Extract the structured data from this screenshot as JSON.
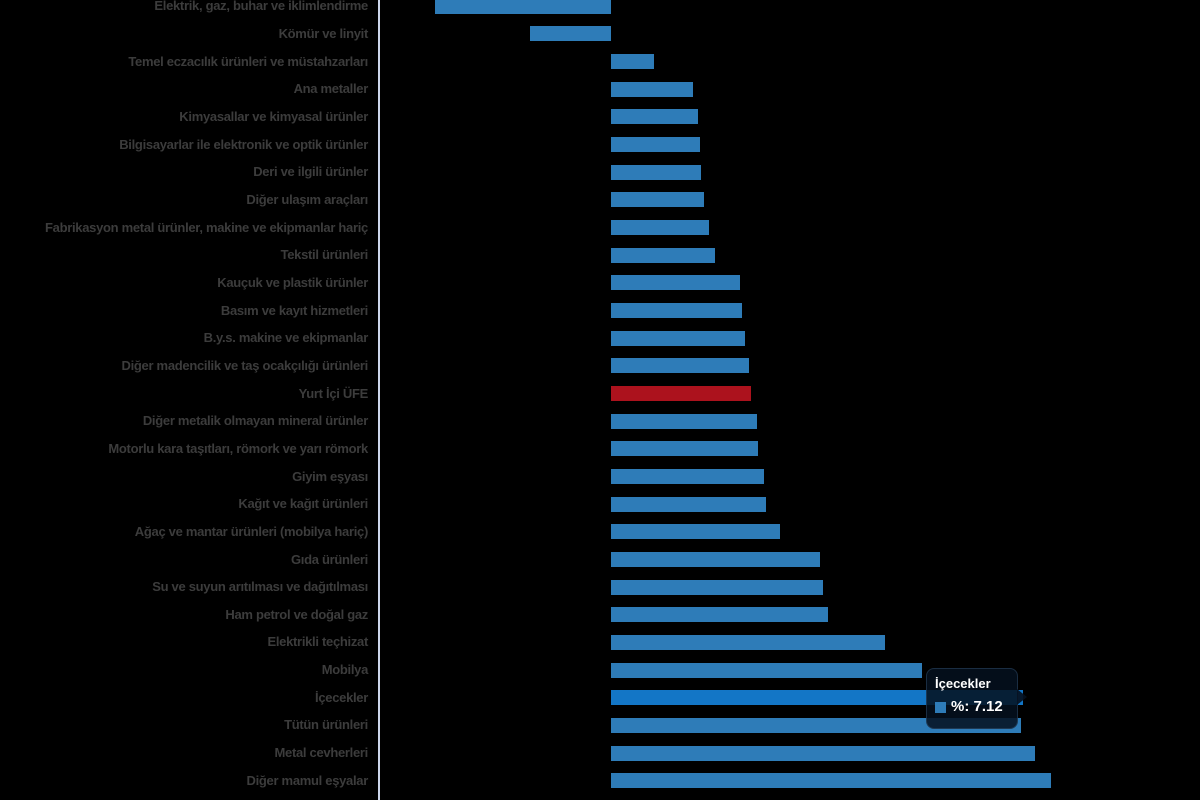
{
  "chart_data": {
    "type": "bar",
    "orientation": "horizontal",
    "title": "",
    "legend": "off",
    "grid": "off",
    "series_name": "%",
    "xlim": [
      -4.05,
      10.2
    ],
    "categories": [
      "Elektrik, gaz, buhar ve iklimlendirme",
      "Kömür ve linyit",
      "Temel eczacılık ürünleri ve müstahzarları",
      "Ana metaller",
      "Kimyasallar ve kimyasal ürünler",
      "Bilgisayarlar ile elektronik ve optik ürünler",
      "Deri ve ilgili ürünler",
      "Diğer ulaşım araçları",
      "Fabrikasyon metal ürünler, makine ve ekipmanlar hariç",
      "Tekstil ürünleri",
      "Kauçuk ve plastik ürünler",
      "Basım ve kayıt hizmetleri",
      "B.y.s. makine ve ekipmanlar",
      "Diğer madencilik ve taş ocakçılığı ürünleri",
      "Yurt İçi ÜFE",
      "Diğer metalik olmayan mineral ürünler",
      "Motorlu kara taşıtları, römork ve yarı römork",
      "Giyim eşyası",
      "Kağıt ve kağıt ürünleri",
      "Ağaç ve mantar ürünleri (mobilya hariç)",
      "Gıda ürünleri",
      "Su ve suyun arıtılması ve dağıtılması",
      "Ham petrol ve doğal gaz",
      "Elektrikli teçhizat",
      "Mobilya",
      "İçecekler",
      "Tütün ürünleri",
      "Metal cevherleri",
      "Diğer mamul eşyalar"
    ],
    "values": [
      -3.05,
      -1.4,
      0.74,
      1.42,
      1.5,
      1.54,
      1.56,
      1.61,
      1.7,
      1.8,
      2.24,
      2.26,
      2.31,
      2.38,
      2.43,
      2.52,
      2.54,
      2.64,
      2.68,
      2.92,
      3.62,
      3.66,
      3.76,
      4.74,
      5.38,
      7.12,
      7.1,
      7.34,
      7.61
    ],
    "bar_color": "#2E7CB8",
    "red_color": "#AC121D",
    "hover_color": "#1376C6",
    "red_category": "Yurt İçi ÜFE",
    "hovered_category": "İçecekler",
    "axis_line_color": "#CCD6EB",
    "label_color": "#3C3C3C"
  },
  "tooltip": {
    "title": "İçecekler",
    "marker_color": "#2E7CB8",
    "value_label": "%: 7.12",
    "value": 7.12
  }
}
